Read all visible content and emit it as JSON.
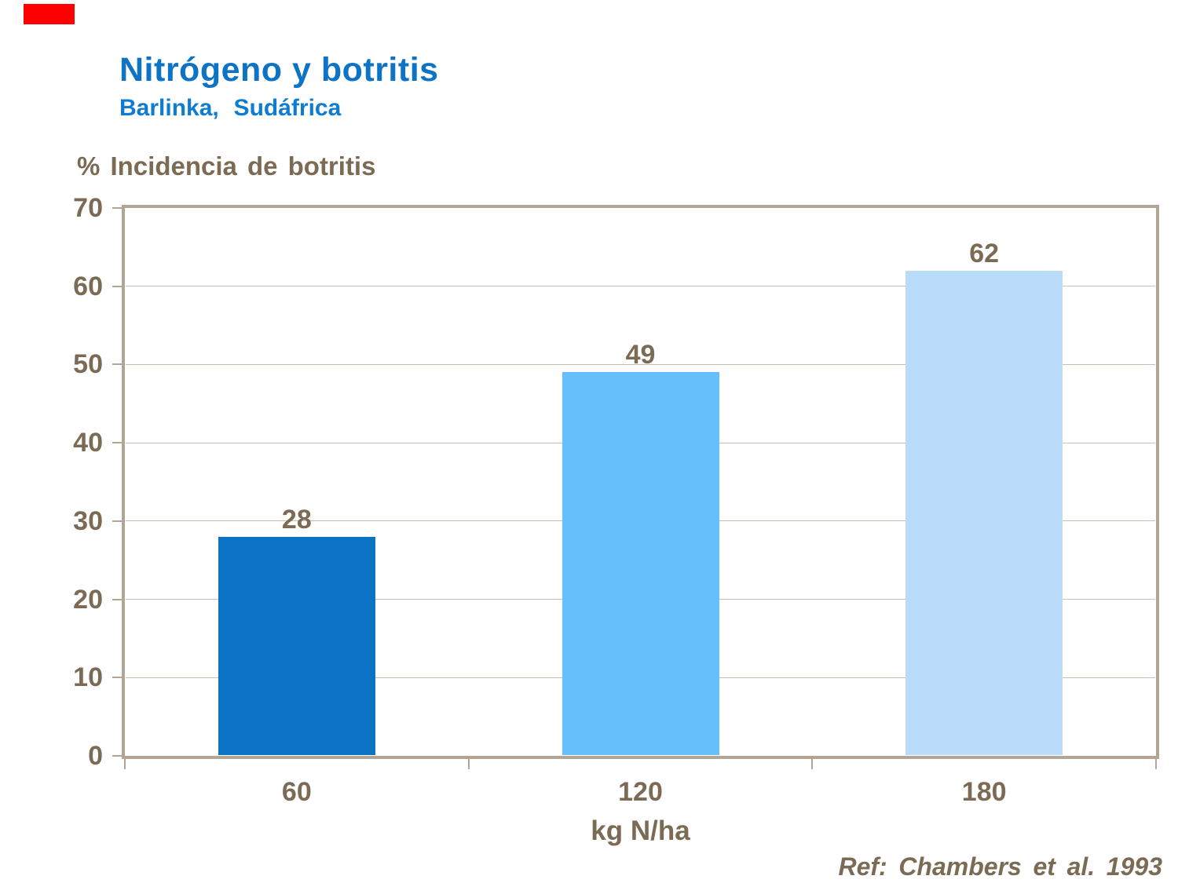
{
  "page": {
    "title": "Nitrógeno y botritis",
    "subtitle": "Barlinka, Sudáfrica",
    "source_ref": "Ref: Chambers et al. 1993"
  },
  "colors": {
    "title_blue": "#0d73c5",
    "subtitle_blue": "#0e7cd1",
    "text_brown": "#7c6b54",
    "axis": "#b3a593",
    "gridline": "#c9beae",
    "marker_red": "#ff0000",
    "background": "#ffffff"
  },
  "chart_data": {
    "type": "bar",
    "title": "Nitrógeno y botritis",
    "subtitle": "Barlinka, Sudáfrica",
    "value_axis_title": "% Incidencia de botritis",
    "xlabel": "kg N/ha",
    "ylabel": "% Incidencia de botritis",
    "categories": [
      "60",
      "120",
      "180"
    ],
    "values": [
      28,
      49,
      62
    ],
    "data_labels": [
      "28",
      "49",
      "62"
    ],
    "bar_colors": [
      "#0b73c4",
      "#66befb",
      "#b8dcfa"
    ],
    "ylim": [
      0,
      70
    ],
    "yticks": [
      0,
      10,
      20,
      30,
      40,
      50,
      60,
      70
    ],
    "grid": true,
    "legend": false,
    "source": "Ref: Chambers et al. 1993"
  }
}
